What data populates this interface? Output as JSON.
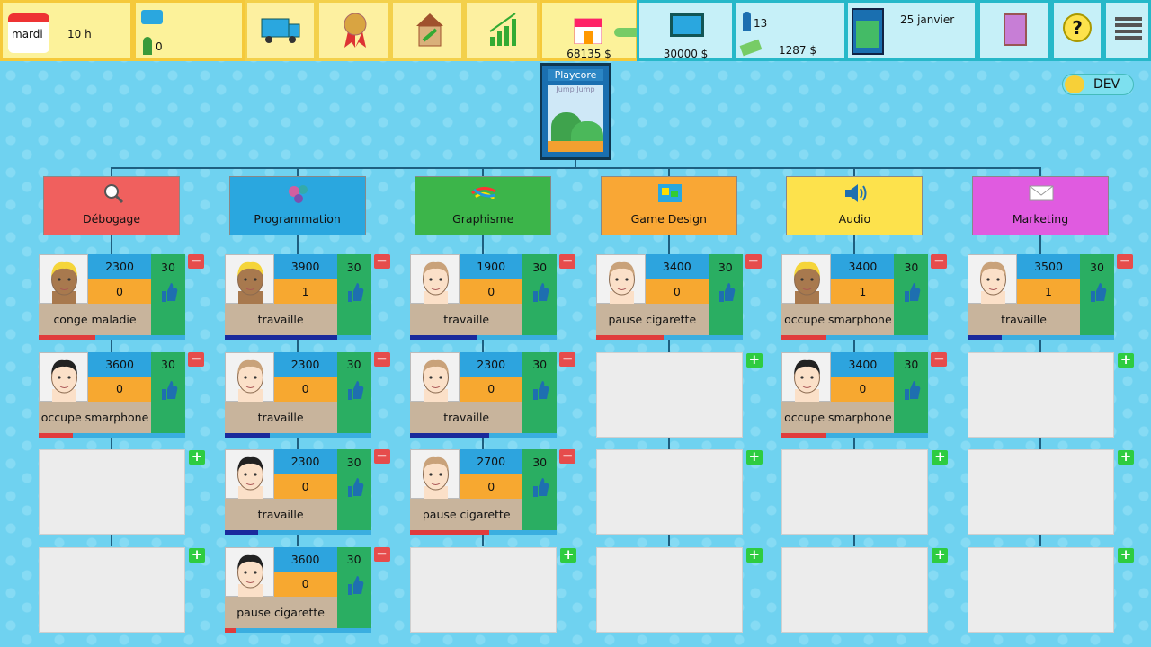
{
  "top_bar": {
    "day": "mardi",
    "hour": "10 h",
    "idle_staff": "0",
    "money": "68135 $",
    "computer_price": "30000 $",
    "employees": "13",
    "salaries": "1287 $",
    "date": "25 janvier"
  },
  "cover": {
    "studio": "Playcore",
    "game": "Jump Jump"
  },
  "dev_toggle": "DEV",
  "departments": [
    {
      "name": "Débogage",
      "color": "#f0605e",
      "staff": [
        {
          "salary": "2300",
          "level": "0",
          "morale": "30",
          "status": "conge maladie",
          "progress": 50,
          "bar_color": "#e03c3c",
          "skin": "#a8794e",
          "hair": "#f5d53a"
        },
        {
          "salary": "3600",
          "level": "0",
          "morale": "30",
          "status": "occupe smarphone",
          "progress": 30,
          "bar_color": "#e03c3c",
          "skin": "#fbe0c8",
          "hair": "#222222"
        }
      ]
    },
    {
      "name": "Programmation",
      "color": "#2aa7df",
      "staff": [
        {
          "salary": "3900",
          "level": "1",
          "morale": "30",
          "status": "travaille",
          "progress": 100,
          "bar_color": "#1a2a9c",
          "skin": "#a8794e",
          "hair": "#f5d53a"
        },
        {
          "salary": "2300",
          "level": "0",
          "morale": "30",
          "status": "travaille",
          "progress": 40,
          "bar_color": "#1a2a9c",
          "skin": "#fbe0c8",
          "hair": "#c9a27a"
        },
        {
          "salary": "2300",
          "level": "0",
          "morale": "30",
          "status": "travaille",
          "progress": 30,
          "bar_color": "#1a2a9c",
          "skin": "#fbe0c8",
          "hair": "#222222"
        },
        {
          "salary": "3600",
          "level": "0",
          "morale": "30",
          "status": "pause cigarette",
          "progress": 10,
          "bar_color": "#e03c3c",
          "skin": "#fbe0c8",
          "hair": "#222222"
        }
      ]
    },
    {
      "name": "Graphisme",
      "color": "#3cb54a",
      "staff": [
        {
          "salary": "1900",
          "level": "0",
          "morale": "30",
          "status": "travaille",
          "progress": 60,
          "bar_color": "#1a2a9c",
          "skin": "#fbe0c8",
          "hair": "#c9a27a"
        },
        {
          "salary": "2300",
          "level": "0",
          "morale": "30",
          "status": "travaille",
          "progress": 70,
          "bar_color": "#1a2a9c",
          "skin": "#fbe0c8",
          "hair": "#c9a27a"
        },
        {
          "salary": "2700",
          "level": "0",
          "morale": "30",
          "status": "pause cigarette",
          "progress": 70,
          "bar_color": "#e03c3c",
          "skin": "#fbe0c8",
          "hair": "#c9a27a"
        }
      ]
    },
    {
      "name": "Game Design",
      "color": "#f9a735",
      "staff": [
        {
          "salary": "3400",
          "level": "0",
          "morale": "30",
          "status": "pause cigarette",
          "progress": 60,
          "bar_color": "#e03c3c",
          "skin": "#fbe0c8",
          "hair": "#c9a27a"
        }
      ]
    },
    {
      "name": "Audio",
      "color": "#fde24c",
      "staff": [
        {
          "salary": "3400",
          "level": "1",
          "morale": "30",
          "status": "occupe smarphone",
          "progress": 40,
          "bar_color": "#e03c3c",
          "skin": "#a8794e",
          "hair": "#f5d53a"
        },
        {
          "salary": "3400",
          "level": "0",
          "morale": "30",
          "status": "occupe smarphone",
          "progress": 40,
          "bar_color": "#e03c3c",
          "skin": "#fbe0c8",
          "hair": "#222222"
        }
      ]
    },
    {
      "name": "Marketing",
      "color": "#e05be0",
      "staff": [
        {
          "salary": "3500",
          "level": "1",
          "morale": "30",
          "status": "travaille",
          "progress": 30,
          "bar_color": "#1a2a9c",
          "skin": "#fbe0c8",
          "hair": "#c9a27a"
        }
      ]
    }
  ]
}
